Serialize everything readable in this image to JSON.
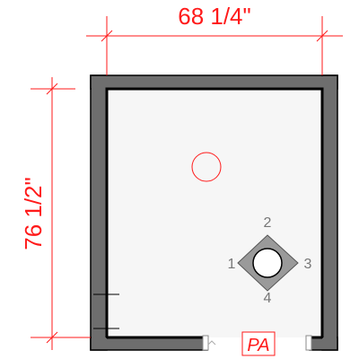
{
  "colors": {
    "dimension": "#ff1a1a",
    "wall_fill": "#6e6e6e",
    "wall_outline": "#000000",
    "floor": "#f6f6f6",
    "marker_fill": "#9a9a9a",
    "marker_label": "#777777"
  },
  "dimensions": {
    "width_label": "68 1/4\"",
    "height_label": "76 1/2\""
  },
  "view_marker": {
    "labels": [
      "1",
      "2",
      "3",
      "4"
    ]
  },
  "tag": {
    "label": "PA"
  },
  "icons": {
    "view_marker": "camera-view-marker-icon",
    "fixture": "circle-fixture-icon"
  }
}
